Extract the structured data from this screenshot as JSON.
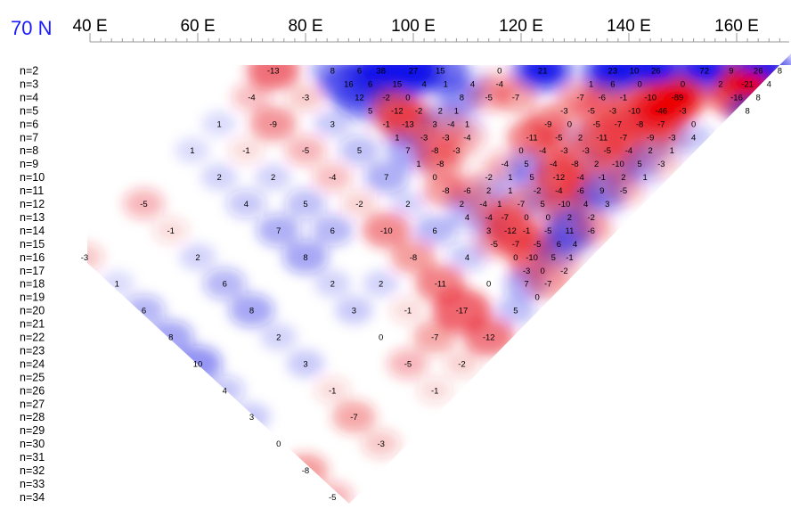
{
  "chart_data": {
    "type": "heatmap",
    "title": "70 N",
    "x_axis": {
      "range": [
        40,
        168
      ],
      "major_ticks": [
        40,
        60,
        80,
        100,
        120,
        140,
        160
      ],
      "tick_labels": [
        "40 E",
        "60 E",
        "80 E",
        "100 E",
        "120 E",
        "140 E",
        "160 E"
      ],
      "minor_tick_step": 2
    },
    "rows": [
      "n=2",
      "n=3",
      "n=4",
      "n=5",
      "n=6",
      "n=7",
      "n=8",
      "n=9",
      "n=10",
      "n=11",
      "n=12",
      "n=13",
      "n=14",
      "n=15",
      "n=16",
      "n=17",
      "n=18",
      "n=19",
      "n=20",
      "n=21",
      "n=22",
      "n=23",
      "n=24",
      "n=25",
      "n=26",
      "n=27",
      "n=28",
      "n=29",
      "n=30",
      "n=31",
      "n=32",
      "n=33",
      "n=34"
    ],
    "color_scale": {
      "negative": "#e8202a",
      "positive": "#1a1ae6",
      "zero": "#ffffff"
    },
    "points": [
      {
        "n": 2,
        "lon": 74,
        "v": -13
      },
      {
        "n": 2,
        "lon": 85,
        "v": 8
      },
      {
        "n": 2,
        "lon": 90,
        "v": 6
      },
      {
        "n": 2,
        "lon": 94,
        "v": 38
      },
      {
        "n": 2,
        "lon": 100,
        "v": 27
      },
      {
        "n": 2,
        "lon": 105,
        "v": 15
      },
      {
        "n": 2,
        "lon": 116,
        "v": 0
      },
      {
        "n": 2,
        "lon": 124,
        "v": 21
      },
      {
        "n": 2,
        "lon": 137,
        "v": 23
      },
      {
        "n": 2,
        "lon": 141,
        "v": 10
      },
      {
        "n": 2,
        "lon": 145,
        "v": 26
      },
      {
        "n": 2,
        "lon": 154,
        "v": 72
      },
      {
        "n": 2,
        "lon": 159,
        "v": 9
      },
      {
        "n": 2,
        "lon": 164,
        "v": 26
      },
      {
        "n": 2,
        "lon": 168,
        "v": 8
      },
      {
        "n": 3,
        "lon": 88,
        "v": 16
      },
      {
        "n": 3,
        "lon": 92,
        "v": 6
      },
      {
        "n": 3,
        "lon": 97,
        "v": 15
      },
      {
        "n": 3,
        "lon": 102,
        "v": 4
      },
      {
        "n": 3,
        "lon": 106,
        "v": 1
      },
      {
        "n": 3,
        "lon": 111,
        "v": 4
      },
      {
        "n": 3,
        "lon": 116,
        "v": -4
      },
      {
        "n": 3,
        "lon": 133,
        "v": 1
      },
      {
        "n": 3,
        "lon": 137,
        "v": 6
      },
      {
        "n": 3,
        "lon": 142,
        "v": 0
      },
      {
        "n": 3,
        "lon": 150,
        "v": 0
      },
      {
        "n": 3,
        "lon": 157,
        "v": 2
      },
      {
        "n": 3,
        "lon": 162,
        "v": -21
      },
      {
        "n": 3,
        "lon": 166,
        "v": 4
      },
      {
        "n": 4,
        "lon": 70,
        "v": -4
      },
      {
        "n": 4,
        "lon": 80,
        "v": -3
      },
      {
        "n": 4,
        "lon": 90,
        "v": 12
      },
      {
        "n": 4,
        "lon": 95,
        "v": -2
      },
      {
        "n": 4,
        "lon": 99,
        "v": 0
      },
      {
        "n": 4,
        "lon": 109,
        "v": 8
      },
      {
        "n": 4,
        "lon": 114,
        "v": -5
      },
      {
        "n": 4,
        "lon": 119,
        "v": -7
      },
      {
        "n": 4,
        "lon": 131,
        "v": -7
      },
      {
        "n": 4,
        "lon": 135,
        "v": -6
      },
      {
        "n": 4,
        "lon": 139,
        "v": -1
      },
      {
        "n": 4,
        "lon": 144,
        "v": -10
      },
      {
        "n": 4,
        "lon": 149,
        "v": -89
      },
      {
        "n": 4,
        "lon": 160,
        "v": -16
      },
      {
        "n": 4,
        "lon": 164,
        "v": 8
      },
      {
        "n": 5,
        "lon": 92,
        "v": 5
      },
      {
        "n": 5,
        "lon": 97,
        "v": -12
      },
      {
        "n": 5,
        "lon": 101,
        "v": -2
      },
      {
        "n": 5,
        "lon": 105,
        "v": 2
      },
      {
        "n": 5,
        "lon": 108,
        "v": 1
      },
      {
        "n": 5,
        "lon": 128,
        "v": -3
      },
      {
        "n": 5,
        "lon": 133,
        "v": -5
      },
      {
        "n": 5,
        "lon": 137,
        "v": -3
      },
      {
        "n": 5,
        "lon": 141,
        "v": -10
      },
      {
        "n": 5,
        "lon": 146,
        "v": -46
      },
      {
        "n": 5,
        "lon": 150,
        "v": -3
      },
      {
        "n": 5,
        "lon": 162,
        "v": 8
      },
      {
        "n": 6,
        "lon": 64,
        "v": 1
      },
      {
        "n": 6,
        "lon": 74,
        "v": -9
      },
      {
        "n": 6,
        "lon": 85,
        "v": 3
      },
      {
        "n": 6,
        "lon": 95,
        "v": -1
      },
      {
        "n": 6,
        "lon": 99,
        "v": -13
      },
      {
        "n": 6,
        "lon": 104,
        "v": 3
      },
      {
        "n": 6,
        "lon": 107,
        "v": -4
      },
      {
        "n": 6,
        "lon": 110,
        "v": 1
      },
      {
        "n": 6,
        "lon": 125,
        "v": -9
      },
      {
        "n": 6,
        "lon": 129,
        "v": 0
      },
      {
        "n": 6,
        "lon": 134,
        "v": -5
      },
      {
        "n": 6,
        "lon": 138,
        "v": -7
      },
      {
        "n": 6,
        "lon": 142,
        "v": -8
      },
      {
        "n": 6,
        "lon": 146,
        "v": -7
      },
      {
        "n": 6,
        "lon": 152,
        "v": 0
      },
      {
        "n": 7,
        "lon": 97,
        "v": 1
      },
      {
        "n": 7,
        "lon": 102,
        "v": -3
      },
      {
        "n": 7,
        "lon": 106,
        "v": -3
      },
      {
        "n": 7,
        "lon": 110,
        "v": -4
      },
      {
        "n": 7,
        "lon": 122,
        "v": -11
      },
      {
        "n": 7,
        "lon": 127,
        "v": -5
      },
      {
        "n": 7,
        "lon": 131,
        "v": 2
      },
      {
        "n": 7,
        "lon": 135,
        "v": -11
      },
      {
        "n": 7,
        "lon": 139,
        "v": -7
      },
      {
        "n": 7,
        "lon": 144,
        "v": -9
      },
      {
        "n": 7,
        "lon": 148,
        "v": -3
      },
      {
        "n": 7,
        "lon": 152,
        "v": 4
      },
      {
        "n": 8,
        "lon": 59,
        "v": 1
      },
      {
        "n": 8,
        "lon": 69,
        "v": -1
      },
      {
        "n": 8,
        "lon": 80,
        "v": -5
      },
      {
        "n": 8,
        "lon": 90,
        "v": 5
      },
      {
        "n": 8,
        "lon": 99,
        "v": 7
      },
      {
        "n": 8,
        "lon": 104,
        "v": -8
      },
      {
        "n": 8,
        "lon": 108,
        "v": -3
      },
      {
        "n": 8,
        "lon": 120,
        "v": 0
      },
      {
        "n": 8,
        "lon": 124,
        "v": -4
      },
      {
        "n": 8,
        "lon": 128,
        "v": -3
      },
      {
        "n": 8,
        "lon": 132,
        "v": -3
      },
      {
        "n": 8,
        "lon": 136,
        "v": -5
      },
      {
        "n": 8,
        "lon": 140,
        "v": -4
      },
      {
        "n": 8,
        "lon": 144,
        "v": 2
      },
      {
        "n": 8,
        "lon": 148,
        "v": 1
      },
      {
        "n": 9,
        "lon": 101,
        "v": 1
      },
      {
        "n": 9,
        "lon": 105,
        "v": -8
      },
      {
        "n": 9,
        "lon": 117,
        "v": -4
      },
      {
        "n": 9,
        "lon": 121,
        "v": 5
      },
      {
        "n": 9,
        "lon": 126,
        "v": -4
      },
      {
        "n": 9,
        "lon": 130,
        "v": -8
      },
      {
        "n": 9,
        "lon": 134,
        "v": 2
      },
      {
        "n": 9,
        "lon": 138,
        "v": -10
      },
      {
        "n": 9,
        "lon": 142,
        "v": 5
      },
      {
        "n": 9,
        "lon": 146,
        "v": -3
      },
      {
        "n": 10,
        "lon": 64,
        "v": 2
      },
      {
        "n": 10,
        "lon": 74,
        "v": 2
      },
      {
        "n": 10,
        "lon": 85,
        "v": -4
      },
      {
        "n": 10,
        "lon": 95,
        "v": 7
      },
      {
        "n": 10,
        "lon": 104,
        "v": 0
      },
      {
        "n": 10,
        "lon": 114,
        "v": -2
      },
      {
        "n": 10,
        "lon": 118,
        "v": 1
      },
      {
        "n": 10,
        "lon": 122,
        "v": 5
      },
      {
        "n": 10,
        "lon": 127,
        "v": -12
      },
      {
        "n": 10,
        "lon": 131,
        "v": -4
      },
      {
        "n": 10,
        "lon": 135,
        "v": -1
      },
      {
        "n": 10,
        "lon": 139,
        "v": 2
      },
      {
        "n": 10,
        "lon": 143,
        "v": 1
      },
      {
        "n": 11,
        "lon": 106,
        "v": -8
      },
      {
        "n": 11,
        "lon": 110,
        "v": -6
      },
      {
        "n": 11,
        "lon": 114,
        "v": 2
      },
      {
        "n": 11,
        "lon": 118,
        "v": 1
      },
      {
        "n": 11,
        "lon": 123,
        "v": -2
      },
      {
        "n": 11,
        "lon": 127,
        "v": -4
      },
      {
        "n": 11,
        "lon": 131,
        "v": -6
      },
      {
        "n": 11,
        "lon": 135,
        "v": 9
      },
      {
        "n": 11,
        "lon": 139,
        "v": -5
      },
      {
        "n": 12,
        "lon": 50,
        "v": -5
      },
      {
        "n": 12,
        "lon": 69,
        "v": 4
      },
      {
        "n": 12,
        "lon": 80,
        "v": 5
      },
      {
        "n": 12,
        "lon": 90,
        "v": -2
      },
      {
        "n": 12,
        "lon": 99,
        "v": 2
      },
      {
        "n": 12,
        "lon": 109,
        "v": 2
      },
      {
        "n": 12,
        "lon": 113,
        "v": -4
      },
      {
        "n": 12,
        "lon": 116,
        "v": 1
      },
      {
        "n": 12,
        "lon": 120,
        "v": -7
      },
      {
        "n": 12,
        "lon": 124,
        "v": 5
      },
      {
        "n": 12,
        "lon": 128,
        "v": -10
      },
      {
        "n": 12,
        "lon": 132,
        "v": 4
      },
      {
        "n": 12,
        "lon": 136,
        "v": 3
      },
      {
        "n": 13,
        "lon": 110,
        "v": 4
      },
      {
        "n": 13,
        "lon": 114,
        "v": -4
      },
      {
        "n": 13,
        "lon": 117,
        "v": -7
      },
      {
        "n": 13,
        "lon": 121,
        "v": 0
      },
      {
        "n": 13,
        "lon": 125,
        "v": 0
      },
      {
        "n": 13,
        "lon": 129,
        "v": 2
      },
      {
        "n": 13,
        "lon": 133,
        "v": -2
      },
      {
        "n": 14,
        "lon": 55,
        "v": -1
      },
      {
        "n": 14,
        "lon": 75,
        "v": 7
      },
      {
        "n": 14,
        "lon": 85,
        "v": 6
      },
      {
        "n": 14,
        "lon": 95,
        "v": -10
      },
      {
        "n": 14,
        "lon": 104,
        "v": 6
      },
      {
        "n": 14,
        "lon": 114,
        "v": 3
      },
      {
        "n": 14,
        "lon": 118,
        "v": -12
      },
      {
        "n": 14,
        "lon": 121,
        "v": -1
      },
      {
        "n": 14,
        "lon": 125,
        "v": -5
      },
      {
        "n": 14,
        "lon": 129,
        "v": 11
      },
      {
        "n": 14,
        "lon": 133,
        "v": -6
      },
      {
        "n": 15,
        "lon": 115,
        "v": -5
      },
      {
        "n": 15,
        "lon": 119,
        "v": -7
      },
      {
        "n": 15,
        "lon": 123,
        "v": -5
      },
      {
        "n": 15,
        "lon": 127,
        "v": 6
      },
      {
        "n": 15,
        "lon": 130,
        "v": 4
      },
      {
        "n": 16,
        "lon": 39,
        "v": -3
      },
      {
        "n": 16,
        "lon": 60,
        "v": 2
      },
      {
        "n": 16,
        "lon": 80,
        "v": 8
      },
      {
        "n": 16,
        "lon": 100,
        "v": -8
      },
      {
        "n": 16,
        "lon": 110,
        "v": 4
      },
      {
        "n": 16,
        "lon": 119,
        "v": 0
      },
      {
        "n": 16,
        "lon": 122,
        "v": -10
      },
      {
        "n": 16,
        "lon": 126,
        "v": 5
      },
      {
        "n": 16,
        "lon": 129,
        "v": -1
      },
      {
        "n": 17,
        "lon": 121,
        "v": -3
      },
      {
        "n": 17,
        "lon": 124,
        "v": 0
      },
      {
        "n": 17,
        "lon": 128,
        "v": -2
      },
      {
        "n": 18,
        "lon": 45,
        "v": 1
      },
      {
        "n": 18,
        "lon": 65,
        "v": 6
      },
      {
        "n": 18,
        "lon": 85,
        "v": 2
      },
      {
        "n": 18,
        "lon": 94,
        "v": 2
      },
      {
        "n": 18,
        "lon": 105,
        "v": -11
      },
      {
        "n": 18,
        "lon": 114,
        "v": 0
      },
      {
        "n": 18,
        "lon": 121,
        "v": 7
      },
      {
        "n": 18,
        "lon": 125,
        "v": -7
      },
      {
        "n": 19,
        "lon": 123,
        "v": 0
      },
      {
        "n": 20,
        "lon": 50,
        "v": 6
      },
      {
        "n": 20,
        "lon": 70,
        "v": 8
      },
      {
        "n": 20,
        "lon": 89,
        "v": 3
      },
      {
        "n": 20,
        "lon": 99,
        "v": -1
      },
      {
        "n": 20,
        "lon": 109,
        "v": -17
      },
      {
        "n": 20,
        "lon": 119,
        "v": 5
      },
      {
        "n": 22,
        "lon": 55,
        "v": 8
      },
      {
        "n": 22,
        "lon": 75,
        "v": 2
      },
      {
        "n": 22,
        "lon": 94,
        "v": 0
      },
      {
        "n": 22,
        "lon": 104,
        "v": -7
      },
      {
        "n": 22,
        "lon": 114,
        "v": -12
      },
      {
        "n": 24,
        "lon": 60,
        "v": 10
      },
      {
        "n": 24,
        "lon": 80,
        "v": 3
      },
      {
        "n": 24,
        "lon": 99,
        "v": -5
      },
      {
        "n": 24,
        "lon": 109,
        "v": -2
      },
      {
        "n": 26,
        "lon": 65,
        "v": 4
      },
      {
        "n": 26,
        "lon": 85,
        "v": -1
      },
      {
        "n": 26,
        "lon": 104,
        "v": -1
      },
      {
        "n": 28,
        "lon": 70,
        "v": 3
      },
      {
        "n": 28,
        "lon": 89,
        "v": -7
      },
      {
        "n": 30,
        "lon": 75,
        "v": 0
      },
      {
        "n": 30,
        "lon": 94,
        "v": -3
      },
      {
        "n": 32,
        "lon": 80,
        "v": -8
      },
      {
        "n": 34,
        "lon": 85,
        "v": -5
      }
    ]
  }
}
